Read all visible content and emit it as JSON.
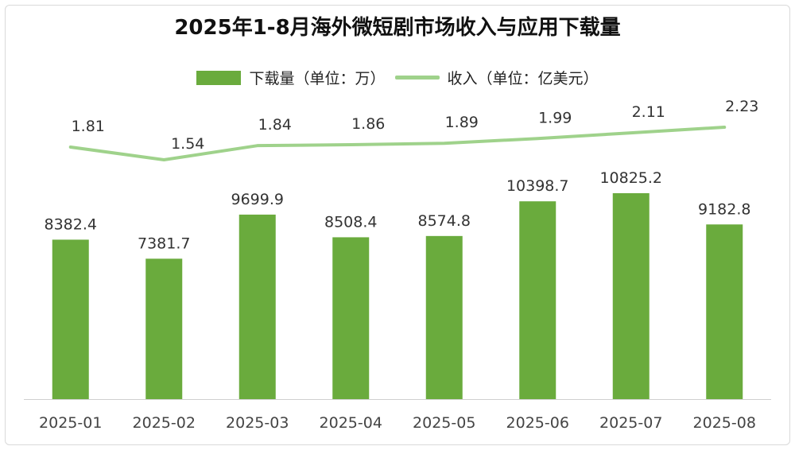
{
  "chart_data": {
    "type": "bar",
    "title": "2025年1-8月海外微短剧市场收入与应用下载量",
    "categories": [
      "2025-01",
      "2025-02",
      "2025-03",
      "2025-04",
      "2025-05",
      "2025-06",
      "2025-07",
      "2025-08"
    ],
    "series": [
      {
        "name": "下载量（单位：万）",
        "type": "bar",
        "color": "#6aab3d",
        "values": [
          8382.4,
          7381.7,
          9699.9,
          8508.4,
          8574.8,
          10398.7,
          10825.2,
          9182.8
        ],
        "labels": [
          "8382.4",
          "7381.7",
          "9699.9",
          "8508.4",
          "8574.8",
          "10398.7",
          "10825.2",
          "9182.8"
        ]
      },
      {
        "name": "收入（单位：亿美元）",
        "type": "line",
        "color": "#9fd28b",
        "values": [
          1.81,
          1.54,
          1.84,
          1.86,
          1.89,
          1.99,
          2.11,
          2.23
        ],
        "labels": [
          "1.81",
          "1.54",
          "1.84",
          "1.86",
          "1.89",
          "1.99",
          "2.11",
          "2.23"
        ]
      }
    ],
    "legend_position": "top",
    "grid": false
  }
}
